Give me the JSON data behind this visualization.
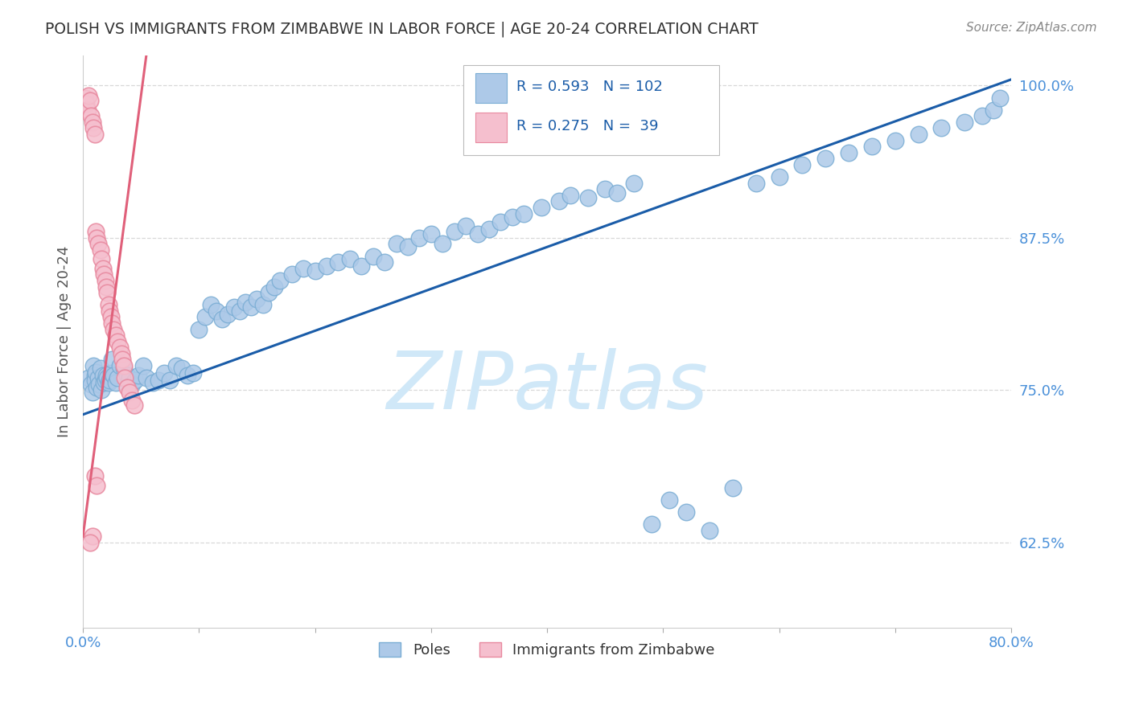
{
  "title": "POLISH VS IMMIGRANTS FROM ZIMBABWE IN LABOR FORCE | AGE 20-24 CORRELATION CHART",
  "source": "Source: ZipAtlas.com",
  "ylabel": "In Labor Force | Age 20-24",
  "xlim": [
    0.0,
    0.8
  ],
  "ylim": [
    0.555,
    1.025
  ],
  "xticks": [
    0.0,
    0.1,
    0.2,
    0.3,
    0.4,
    0.5,
    0.6,
    0.7,
    0.8
  ],
  "xticklabels": [
    "0.0%",
    "",
    "",
    "",
    "",
    "",
    "",
    "",
    "80.0%"
  ],
  "yticks_right": [
    0.625,
    0.75,
    0.875,
    1.0
  ],
  "ytick_right_labels": [
    "62.5%",
    "75.0%",
    "87.5%",
    "100.0%"
  ],
  "blue_color": "#adc9e8",
  "blue_edge": "#7aadd4",
  "pink_color": "#f5bfce",
  "pink_edge": "#e8899f",
  "trend_blue": "#1a5ca8",
  "trend_pink": "#e0607a",
  "watermark": "ZIPatlas",
  "watermark_color": "#d0e8f8",
  "blue_R": 0.593,
  "pink_R": 0.275,
  "blue_N": 102,
  "pink_N": 39,
  "background": "#ffffff",
  "grid_color": "#d8d8d8",
  "title_color": "#333333",
  "axis_label_color": "#555555",
  "right_tick_color": "#4a90d9",
  "bottom_tick_color": "#4a90d9",
  "blue_x": [
    0.005,
    0.007,
    0.008,
    0.009,
    0.01,
    0.01,
    0.011,
    0.012,
    0.013,
    0.014,
    0.015,
    0.016,
    0.017,
    0.018,
    0.019,
    0.02,
    0.021,
    0.022,
    0.023,
    0.024,
    0.025,
    0.026,
    0.028,
    0.03,
    0.032,
    0.035,
    0.038,
    0.04,
    0.042,
    0.045,
    0.048,
    0.052,
    0.055,
    0.06,
    0.065,
    0.07,
    0.075,
    0.08,
    0.085,
    0.09,
    0.095,
    0.1,
    0.105,
    0.11,
    0.115,
    0.12,
    0.125,
    0.13,
    0.135,
    0.14,
    0.145,
    0.15,
    0.155,
    0.16,
    0.165,
    0.17,
    0.18,
    0.19,
    0.2,
    0.21,
    0.22,
    0.23,
    0.24,
    0.25,
    0.26,
    0.27,
    0.28,
    0.29,
    0.3,
    0.31,
    0.32,
    0.33,
    0.34,
    0.35,
    0.36,
    0.37,
    0.38,
    0.395,
    0.41,
    0.42,
    0.435,
    0.45,
    0.46,
    0.475,
    0.49,
    0.505,
    0.52,
    0.54,
    0.56,
    0.58,
    0.6,
    0.62,
    0.64,
    0.66,
    0.68,
    0.7,
    0.72,
    0.74,
    0.76,
    0.775,
    0.785,
    0.79
  ],
  "blue_y": [
    0.76,
    0.755,
    0.748,
    0.77,
    0.762,
    0.758,
    0.765,
    0.752,
    0.76,
    0.755,
    0.768,
    0.75,
    0.762,
    0.756,
    0.758,
    0.762,
    0.76,
    0.756,
    0.758,
    0.764,
    0.775,
    0.762,
    0.756,
    0.76,
    0.77,
    0.768,
    0.762,
    0.76,
    0.755,
    0.758,
    0.762,
    0.77,
    0.76,
    0.756,
    0.758,
    0.764,
    0.758,
    0.77,
    0.768,
    0.762,
    0.764,
    0.8,
    0.81,
    0.82,
    0.815,
    0.808,
    0.812,
    0.818,
    0.815,
    0.822,
    0.818,
    0.825,
    0.82,
    0.83,
    0.835,
    0.84,
    0.845,
    0.85,
    0.848,
    0.852,
    0.855,
    0.858,
    0.852,
    0.86,
    0.855,
    0.87,
    0.868,
    0.875,
    0.878,
    0.87,
    0.88,
    0.885,
    0.878,
    0.882,
    0.888,
    0.892,
    0.895,
    0.9,
    0.905,
    0.91,
    0.908,
    0.915,
    0.912,
    0.92,
    0.64,
    0.66,
    0.65,
    0.635,
    0.67,
    0.92,
    0.925,
    0.935,
    0.94,
    0.945,
    0.95,
    0.955,
    0.96,
    0.965,
    0.97,
    0.975,
    0.98,
    0.99
  ],
  "pink_x": [
    0.002,
    0.003,
    0.004,
    0.005,
    0.006,
    0.007,
    0.008,
    0.009,
    0.01,
    0.011,
    0.012,
    0.013,
    0.015,
    0.016,
    0.017,
    0.018,
    0.019,
    0.02,
    0.021,
    0.022,
    0.023,
    0.024,
    0.025,
    0.026,
    0.028,
    0.03,
    0.032,
    0.033,
    0.034,
    0.035,
    0.036,
    0.038,
    0.04,
    0.042,
    0.044,
    0.01,
    0.012,
    0.008,
    0.006
  ],
  "pink_y": [
    0.99,
    0.985,
    0.98,
    0.992,
    0.988,
    0.975,
    0.97,
    0.965,
    0.96,
    0.88,
    0.875,
    0.87,
    0.865,
    0.858,
    0.85,
    0.845,
    0.84,
    0.835,
    0.83,
    0.82,
    0.815,
    0.81,
    0.805,
    0.8,
    0.795,
    0.79,
    0.785,
    0.78,
    0.775,
    0.77,
    0.76,
    0.752,
    0.748,
    0.742,
    0.738,
    0.68,
    0.672,
    0.63,
    0.625
  ]
}
